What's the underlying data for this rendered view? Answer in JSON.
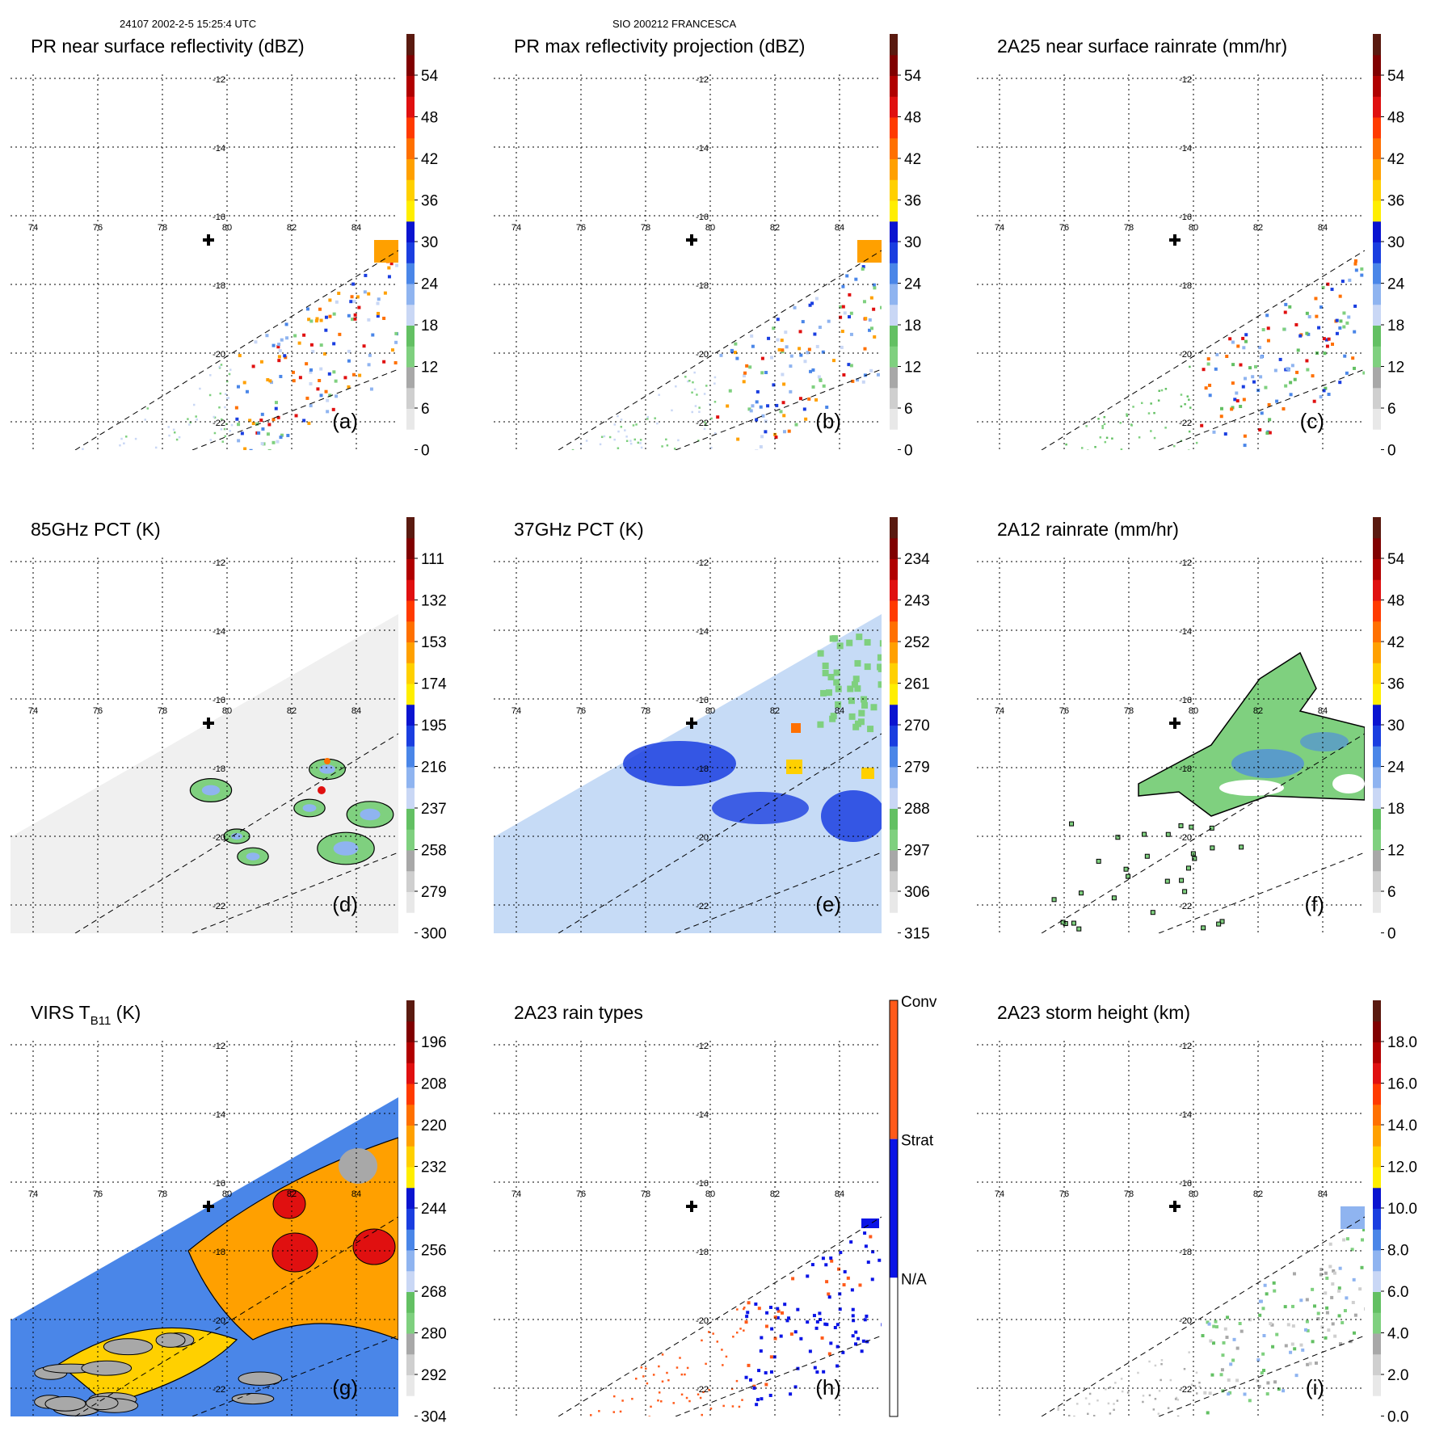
{
  "header": {
    "left": "24107 2002-2-5 15:25:4 UTC",
    "center": "SIO 200212 FRANCESCA"
  },
  "grid": {
    "lon_labels": [
      "74",
      "76",
      "78",
      "80",
      "82",
      "84"
    ],
    "lat_labels": [
      "-12",
      "-14",
      "-16",
      "-18",
      "-20",
      "-22"
    ]
  },
  "storm_center_symbol": "plus-marker",
  "panels": [
    {
      "title": "PR near surface reflectivity (dBZ)",
      "letter": "(a)",
      "colorbar": {
        "labels": [
          "54",
          "48",
          "42",
          "36",
          "30",
          "24",
          "18",
          "12",
          "6",
          "0"
        ]
      },
      "swath": "pr",
      "palette": "dbz"
    },
    {
      "title": "PR max reflectivity projection (dBZ)",
      "letter": "(b)",
      "colorbar": {
        "labels": [
          "54",
          "48",
          "42",
          "36",
          "30",
          "24",
          "18",
          "12",
          "6",
          "0"
        ]
      },
      "swath": "pr",
      "palette": "dbz"
    },
    {
      "title": "2A25 near surface rainrate (mm/hr)",
      "letter": "(c)",
      "colorbar": {
        "labels": [
          "54",
          "48",
          "42",
          "36",
          "30",
          "24",
          "18",
          "12",
          "6",
          "0"
        ]
      },
      "swath": "pr",
      "palette": "rain"
    },
    {
      "title": "85GHz PCT (K)",
      "letter": "(d)",
      "colorbar": {
        "labels": [
          "111",
          "132",
          "153",
          "174",
          "195",
          "216",
          "237",
          "258",
          "279",
          "300"
        ]
      },
      "swath": "tmi",
      "palette": "pct"
    },
    {
      "title": "37GHz PCT (K)",
      "letter": "(e)",
      "colorbar": {
        "labels": [
          "234",
          "243",
          "252",
          "261",
          "270",
          "279",
          "288",
          "297",
          "306",
          "315"
        ]
      },
      "swath": "tmi",
      "palette": "pct37"
    },
    {
      "title": "2A12 rainrate (mm/hr)",
      "letter": "(f)",
      "colorbar": {
        "labels": [
          "54",
          "48",
          "42",
          "36",
          "30",
          "24",
          "18",
          "12",
          "6",
          "0"
        ]
      },
      "swath": "tmi",
      "palette": "rain12"
    },
    {
      "title_main": "VIRS T",
      "title_sub": "B11",
      "title_unit": " (K)",
      "letter": "(g)",
      "colorbar": {
        "labels": [
          "196",
          "208",
          "220",
          "232",
          "244",
          "256",
          "268",
          "280",
          "292",
          "304"
        ]
      },
      "swath": "virs",
      "palette": "virs"
    },
    {
      "title": "2A23 rain types",
      "letter": "(h)",
      "colorbar": {
        "labels": [
          "Conv",
          "Strat",
          "N/A"
        ]
      },
      "swath": "pr",
      "palette": "types"
    },
    {
      "title": "2A23 storm height (km)",
      "letter": "(i)",
      "colorbar": {
        "labels": [
          "18.0",
          "16.0",
          "14.0",
          "12.0",
          "10.0",
          "8.0",
          "6.0",
          "4.0",
          "2.0",
          "0.0"
        ]
      },
      "swath": "pr",
      "palette": "height"
    }
  ],
  "colors": {
    "cbar_bins": [
      "#ffffff",
      "#e8e8e8",
      "#cfcfcf",
      "#a8a8a8",
      "#7fd07f",
      "#63c063",
      "#c9d7f5",
      "#8fb4f0",
      "#4a86e8",
      "#1a3ee0",
      "#0a14d0",
      "#ffee00",
      "#ffd000",
      "#ffa000",
      "#ff7000",
      "#ff3a00",
      "#e01010",
      "#b00000",
      "#800000",
      "#5a1a10"
    ],
    "types": [
      "#ffffff",
      "#0a14e6",
      "#ff5a1a"
    ]
  }
}
